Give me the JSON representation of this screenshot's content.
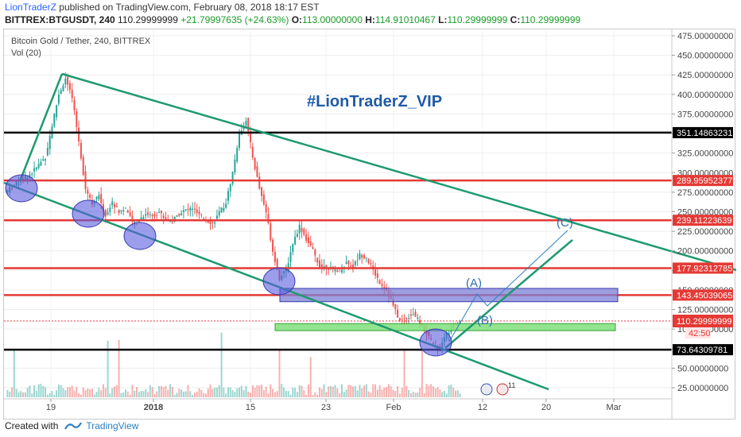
{
  "header": {
    "author": "LionTraderZ",
    "published": "published on TradingView.com, February 08, 2018 18:17 EST",
    "symbol": "BITTREX:BTGUSDT, 240",
    "price": "110.29999999",
    "change": "+21.79997635 (+24.63%)",
    "o_label": "O:",
    "o_value": "113.00000000",
    "h_label": "H:",
    "h_value": "114.91010467",
    "l_label": "L:",
    "l_value": "110.29999999",
    "c_label": "C:",
    "c_value": "110.29999999"
  },
  "legend": {
    "title": "Bitcoin Gold / Tether, 240, BITTREX",
    "volume": "Vol (20)"
  },
  "watermark": "#LionTraderZ_VIP",
  "footer": {
    "created_with": "Created with",
    "brand": "TradingView"
  },
  "colors": {
    "up": "#26a69a",
    "down": "#ef5350",
    "channel": "#1e9a6f",
    "resistance": "#e53935",
    "support": "#000000",
    "watermark": "#1f5aa8",
    "zone_blue": "#7b7fd6",
    "zone_green": "#7ee07a"
  },
  "chart_data": {
    "type": "candlestick",
    "title": "Bitcoin Gold / Tether, 240, BITTREX",
    "ylim": [
      15,
      485
    ],
    "y_ticks": [
      "475.00000000",
      "450.00000000",
      "425.00000000",
      "400.00000000",
      "375.00000000",
      "350.00000000",
      "325.00000000",
      "300.00000000",
      "275.00000000",
      "250.00000000",
      "225.00000000",
      "200.00000000",
      "175.00000000",
      "150.00000000",
      "125.00000000",
      "100.00000000",
      "75.00000000",
      "50.00000000",
      "25.00000000"
    ],
    "x_ticks": [
      "19",
      "2018",
      "15",
      "23",
      "Feb",
      "12",
      "20",
      "Mar"
    ],
    "close_path": [
      [
        0,
        275
      ],
      [
        2,
        288
      ],
      [
        4,
        300
      ],
      [
        6,
        320
      ],
      [
        7,
        360
      ],
      [
        8,
        400
      ],
      [
        9,
        420
      ],
      [
        10,
        395
      ],
      [
        11,
        340
      ],
      [
        12,
        280
      ],
      [
        13,
        262
      ],
      [
        14,
        270
      ],
      [
        15,
        245
      ],
      [
        16,
        262
      ],
      [
        17,
        250
      ],
      [
        18,
        255
      ],
      [
        19,
        235
      ],
      [
        20,
        240
      ],
      [
        21,
        248
      ],
      [
        22,
        245
      ],
      [
        23,
        250
      ],
      [
        24,
        240
      ],
      [
        25,
        238
      ],
      [
        26,
        248
      ],
      [
        27,
        252
      ],
      [
        28,
        255
      ],
      [
        29,
        245
      ],
      [
        30,
        240
      ],
      [
        31,
        235
      ],
      [
        32,
        248
      ],
      [
        33,
        262
      ],
      [
        34,
        300
      ],
      [
        35,
        350
      ],
      [
        36,
        368
      ],
      [
        37,
        320
      ],
      [
        38,
        280
      ],
      [
        39,
        250
      ],
      [
        40,
        200
      ],
      [
        41,
        165
      ],
      [
        42,
        175
      ],
      [
        43,
        210
      ],
      [
        44,
        232
      ],
      [
        45,
        215
      ],
      [
        46,
        200
      ],
      [
        47,
        180
      ],
      [
        48,
        180
      ],
      [
        49,
        176
      ],
      [
        50,
        175
      ],
      [
        51,
        185
      ],
      [
        52,
        180
      ],
      [
        53,
        195
      ],
      [
        54,
        192
      ],
      [
        55,
        175
      ],
      [
        56,
        160
      ],
      [
        57,
        150
      ],
      [
        58,
        130
      ],
      [
        59,
        110
      ],
      [
        60,
        115
      ],
      [
        61,
        120
      ],
      [
        62,
        108
      ],
      [
        63,
        95
      ],
      [
        64,
        80
      ],
      [
        65,
        75
      ],
      [
        66,
        95
      ],
      [
        67,
        105
      ],
      [
        68,
        110.3
      ]
    ],
    "horizontal_levels": [
      {
        "value": 351.14863231,
        "label": "351.14863231",
        "color": "#000000"
      },
      {
        "value": 289.95952377,
        "label": "289.95952377",
        "color": "#e53935"
      },
      {
        "value": 239.11223639,
        "label": "239.11223639",
        "color": "#e53935"
      },
      {
        "value": 177.92312785,
        "label": "177.92312785",
        "color": "#e53935"
      },
      {
        "value": 143.45039065,
        "label": "143.45039065",
        "color": "#e53935"
      },
      {
        "value": 73.64309781,
        "label": "73.64309781",
        "color": "#000000"
      }
    ],
    "last_price": {
      "value": 110.29999999,
      "label": "110.29999999",
      "countdown": "42:50"
    },
    "wave_labels": [
      "(A)",
      "(B)",
      "(C)"
    ],
    "zones": [
      {
        "name": "blue-zone",
        "low": 135,
        "high": 152
      },
      {
        "name": "green-zone",
        "low": 98,
        "high": 107
      }
    ]
  }
}
